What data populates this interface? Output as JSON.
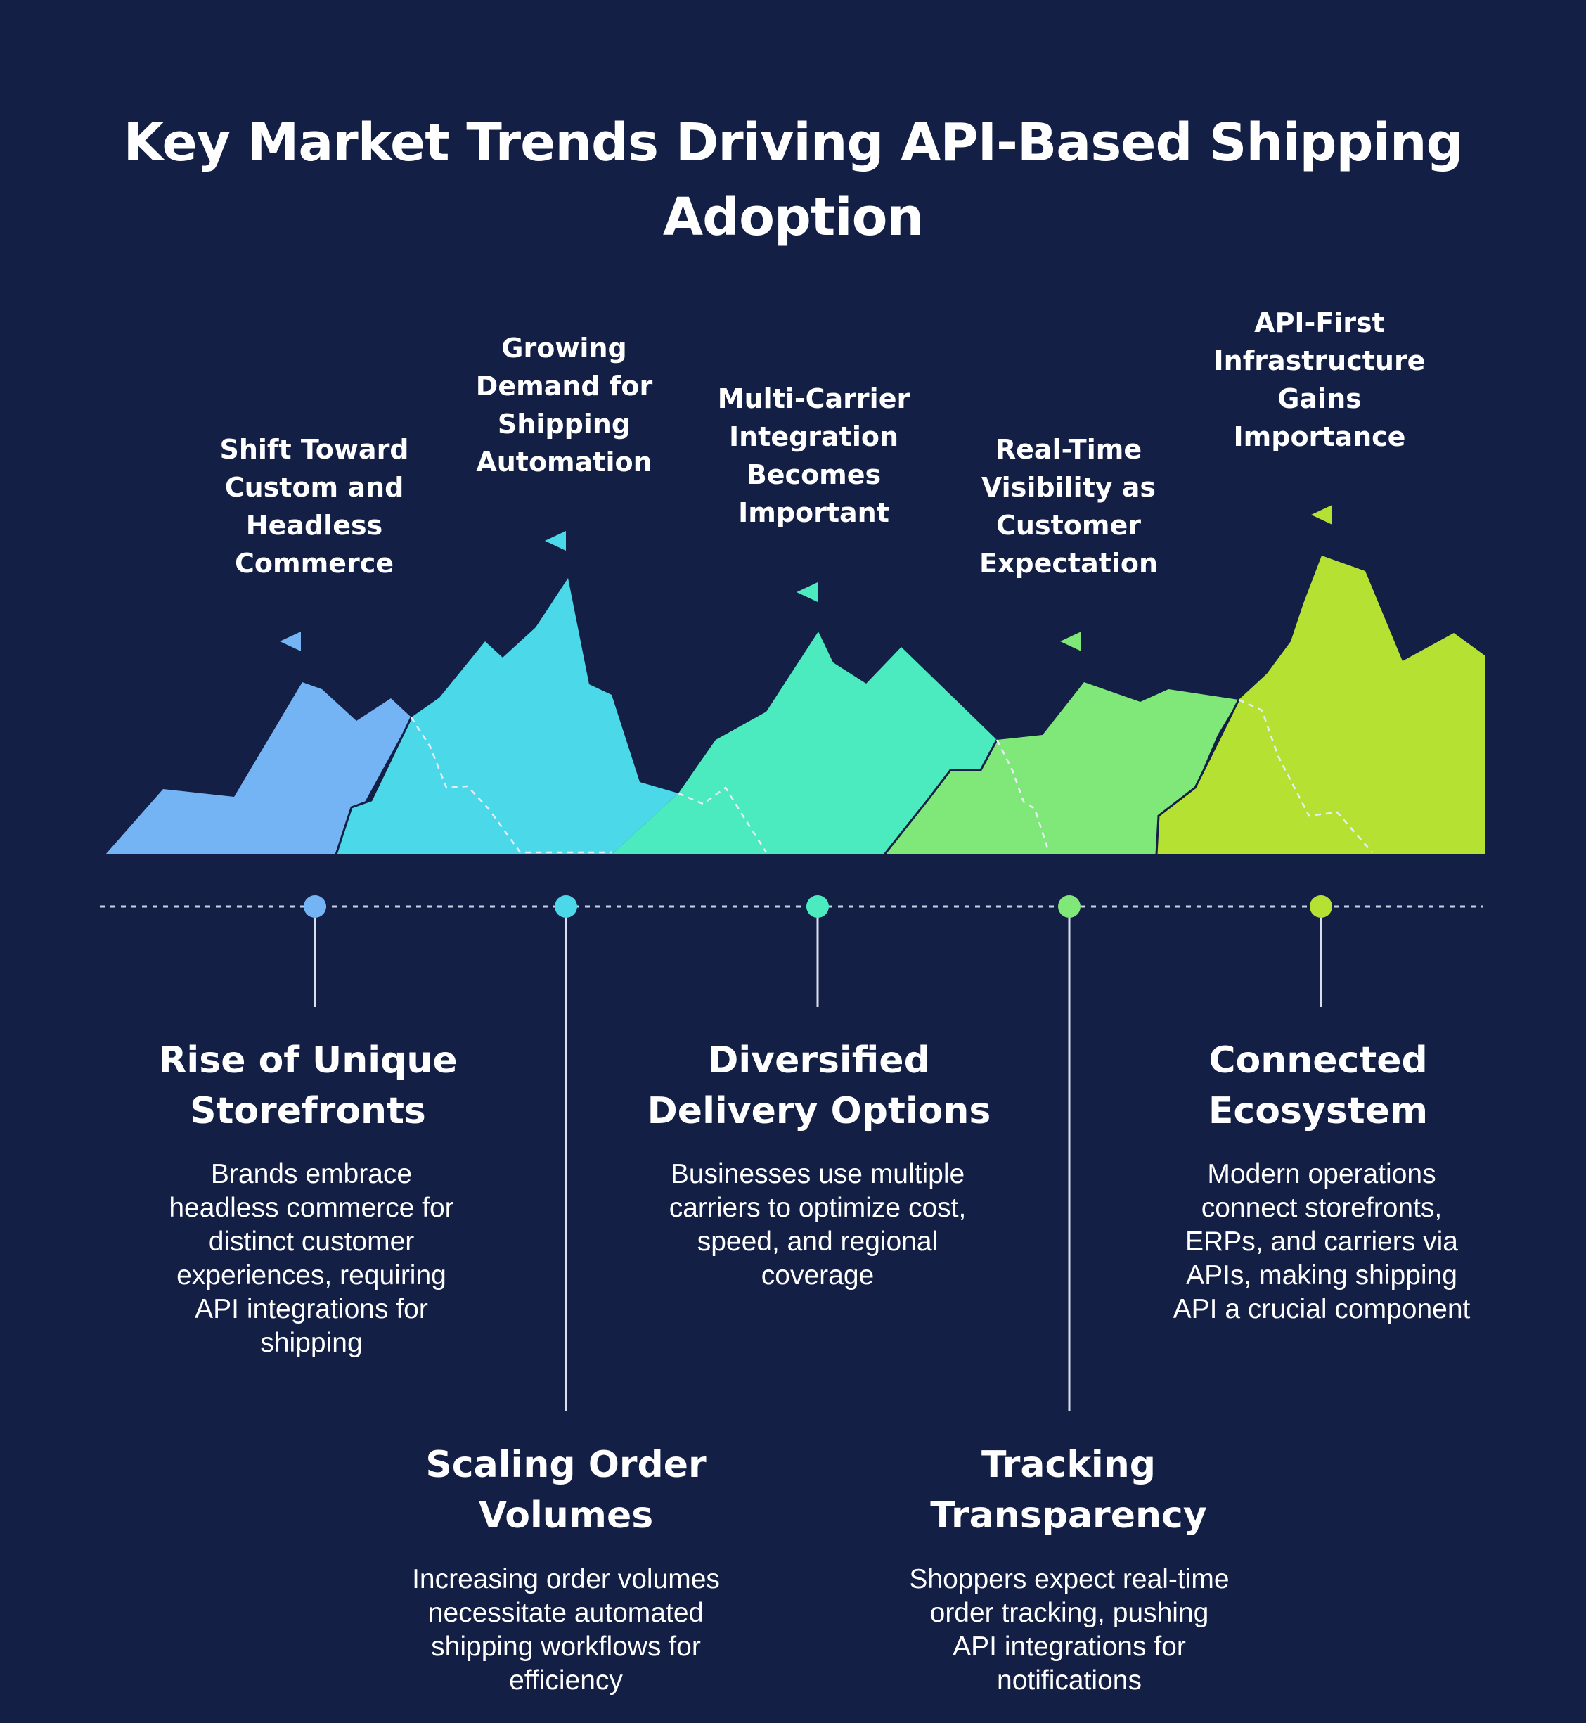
{
  "title": "Key Market Trends Driving API-Based Shipping Adoption",
  "colors": {
    "background": "#131f45",
    "trend_1": "#74b4f4",
    "trend_2": "#4bd8e8",
    "trend_3": "#4ceabf",
    "trend_4": "#80e878",
    "trend_5": "#b5e133"
  },
  "trends": [
    {
      "peak_label": "Shift Toward Custom and Headless Commerce",
      "title": "Rise of Unique Storefronts",
      "description": "Brands embrace headless commerce for distinct customer experiences, requiring API integrations for shipping"
    },
    {
      "peak_label": "Growing Demand for Shipping Automation",
      "title": "Scaling Order Volumes",
      "description": "Increasing order volumes necessitate automated shipping workflows for efficiency"
    },
    {
      "peak_label": "Multi-Carrier Integration Becomes Important",
      "title": "Diversified Delivery Options",
      "description": "Businesses use multiple carriers to optimize cost, speed, and regional coverage"
    },
    {
      "peak_label": "Real-Time Visibility as Customer Expectation",
      "title": "Tracking Transparency",
      "description": "Shoppers expect real-time order tracking, pushing API integrations for notifications"
    },
    {
      "peak_label": "API-First Infrastructure Gains Importance",
      "title": "Connected Ecosystem",
      "description": "Modern operations connect storefronts, ERPs, and carriers via APIs, making shipping API a crucial component"
    }
  ]
}
